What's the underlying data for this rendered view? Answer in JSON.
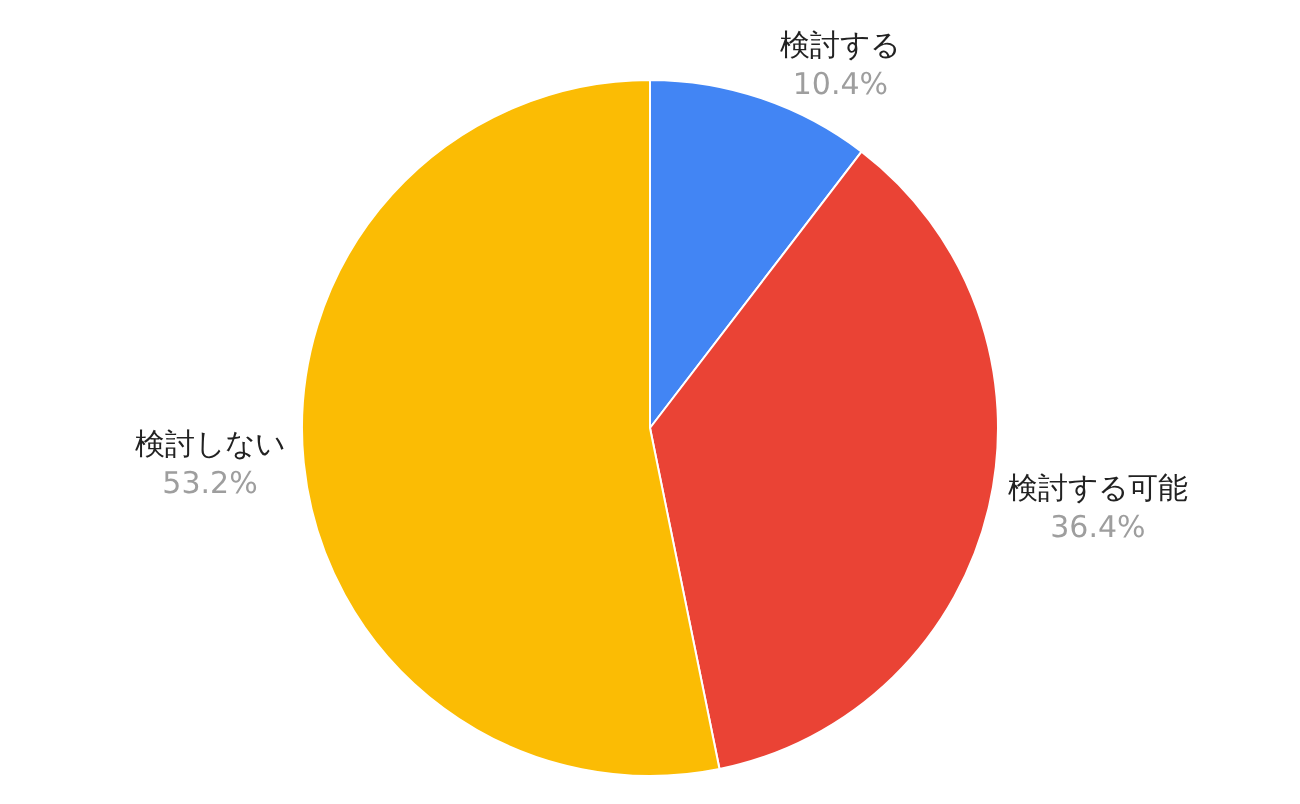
{
  "chart_data": {
    "type": "pie",
    "categories": [
      "検討する",
      "検討する可能",
      "検討しない"
    ],
    "values": [
      10.4,
      36.4,
      53.2
    ],
    "colors": [
      "#4285f4",
      "#ea4335",
      "#fbbc04"
    ],
    "value_labels": [
      "10.4%",
      "36.4%",
      "53.2%"
    ],
    "legend": false
  }
}
